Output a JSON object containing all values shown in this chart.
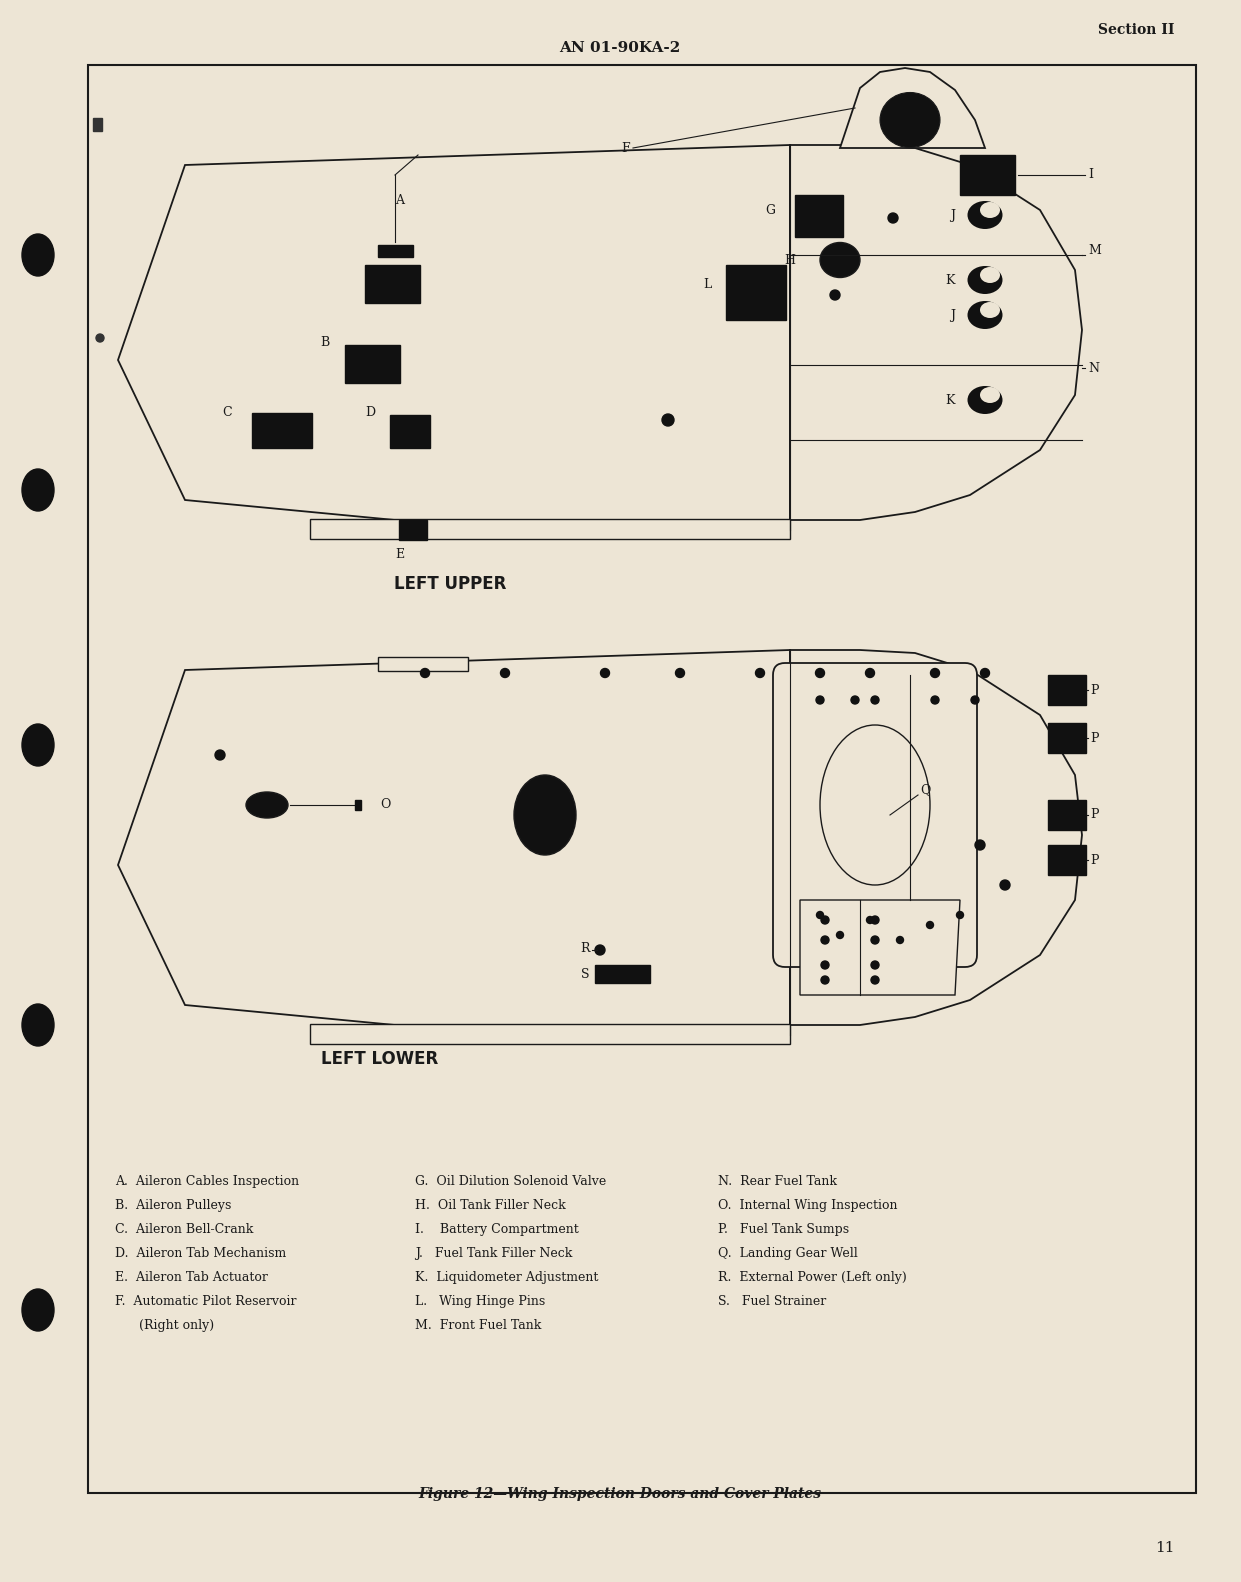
{
  "bg_color": "#ede5d5",
  "page_border_color": "#1a1a1a",
  "header_text": "AN 01-90KA-2",
  "section_text": "Section II",
  "caption_text": "Figure 12—Wing Inspection Doors and Cover Plates",
  "page_number": "11",
  "left_upper_label": "LEFT UPPER",
  "left_lower_label": "LEFT LOWER",
  "legend_col1": [
    "A.  Aileron Cables Inspection",
    "B.  Aileron Pulleys",
    "C.  Aileron Bell-Crank",
    "D.  Aileron Tab Mechanism",
    "E.  Aileron Tab Actuator",
    "F.  Automatic Pilot Reservoir",
    "      (Right only)"
  ],
  "legend_col2": [
    "G.  Oil Dilution Solenoid Valve",
    "H.  Oil Tank Filler Neck",
    "I.    Battery Compartment",
    "J.   Fuel Tank Filler Neck",
    "K.  Liquidometer Adjustment",
    "L.   Wing Hinge Pins",
    "M.  Front Fuel Tank"
  ],
  "legend_col3": [
    "N.  Rear Fuel Tank",
    "O.  Internal Wing Inspection",
    "P.   Fuel Tank Sumps",
    "Q.  Landing Gear Well",
    "R.  External Power (Left only)",
    "S.   Fuel Strainer"
  ]
}
